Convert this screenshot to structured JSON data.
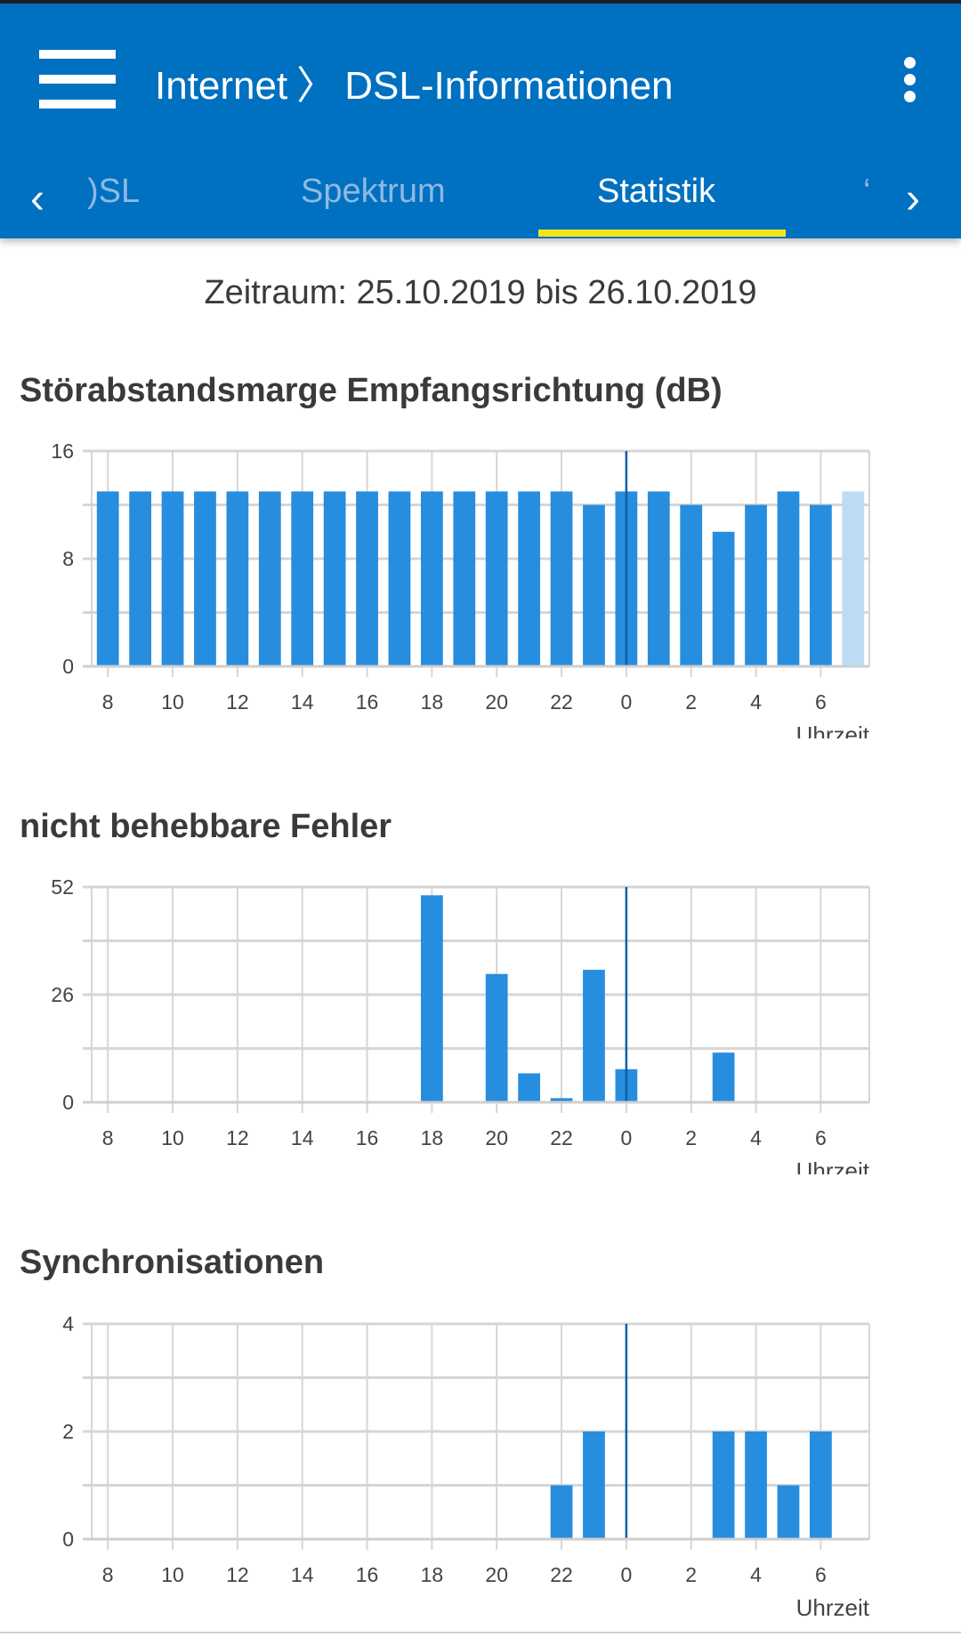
{
  "header": {
    "breadcrumb": [
      "Internet",
      "DSL-Informationen"
    ],
    "separator": "〉",
    "menu_icon": "hamburger-menu-icon",
    "more_icon": "more-vertical-icon"
  },
  "tabs": {
    "items": [
      {
        "label": "DSL",
        "visible_text": ")SL",
        "active": false
      },
      {
        "label": "Spektrum",
        "active": false
      },
      {
        "label": "Statistik",
        "active": true
      },
      {
        "label": "S",
        "visible_text": "‘",
        "active": false
      }
    ],
    "prev_arrow": "‹",
    "next_arrow": "›"
  },
  "period": "Zeitraum: 25.10.2019 bis 26.10.2019",
  "colors": {
    "header": "#0070c0",
    "bar": "#278ddf",
    "bar_current": "#bddcf3",
    "tab_indicator": "#f2e61a",
    "midnight_line": "#0a5ea8"
  },
  "chart_data": [
    {
      "type": "bar",
      "title": "Störabstandsmarge Empfangsrichtung (dB)",
      "xlabel": "Uhrzeit",
      "categories": [
        8,
        9,
        10,
        11,
        12,
        13,
        14,
        15,
        16,
        17,
        18,
        19,
        20,
        21,
        22,
        23,
        0,
        1,
        2,
        3,
        4,
        5,
        6,
        7
      ],
      "values": [
        13,
        13,
        13,
        13,
        13,
        13,
        13,
        13,
        13,
        13,
        13,
        13,
        13,
        13,
        13,
        12,
        13,
        13,
        12,
        10,
        12,
        13,
        12,
        13
      ],
      "highlight_last_light": true,
      "ylim": [
        0,
        16
      ],
      "yticks": [
        "0",
        "8",
        "16"
      ],
      "xticks": [
        "8",
        "10",
        "12",
        "14",
        "16",
        "18",
        "20",
        "22",
        "0",
        "2",
        "4",
        "6"
      ],
      "grid": true
    },
    {
      "type": "bar",
      "title": "nicht behebbare Fehler",
      "xlabel": "Uhrzeit",
      "categories": [
        8,
        9,
        10,
        11,
        12,
        13,
        14,
        15,
        16,
        17,
        18,
        19,
        20,
        21,
        22,
        23,
        0,
        1,
        2,
        3,
        4,
        5,
        6,
        7
      ],
      "values": [
        0,
        0,
        0,
        0,
        0,
        0,
        0,
        0,
        0,
        0,
        50,
        0,
        31,
        7,
        1,
        32,
        8,
        0,
        0,
        12,
        0,
        0,
        0,
        0
      ],
      "ylim": [
        0,
        52
      ],
      "yticks": [
        "0",
        "26",
        "52"
      ],
      "xticks": [
        "8",
        "10",
        "12",
        "14",
        "16",
        "18",
        "20",
        "22",
        "0",
        "2",
        "4",
        "6"
      ],
      "grid": true
    },
    {
      "type": "bar",
      "title": "Synchronisationen",
      "xlabel": "Uhrzeit",
      "categories": [
        8,
        9,
        10,
        11,
        12,
        13,
        14,
        15,
        16,
        17,
        18,
        19,
        20,
        21,
        22,
        23,
        0,
        1,
        2,
        3,
        4,
        5,
        6,
        7
      ],
      "values": [
        0,
        0,
        0,
        0,
        0,
        0,
        0,
        0,
        0,
        0,
        0,
        0,
        0,
        0,
        1,
        2,
        0,
        0,
        0,
        2,
        2,
        1,
        2,
        0
      ],
      "ylim": [
        0,
        4
      ],
      "yticks": [
        "0",
        "2",
        "4"
      ],
      "xticks": [
        "8",
        "10",
        "12",
        "14",
        "16",
        "18",
        "20",
        "22",
        "0",
        "2",
        "4",
        "6"
      ],
      "grid": true
    }
  ]
}
